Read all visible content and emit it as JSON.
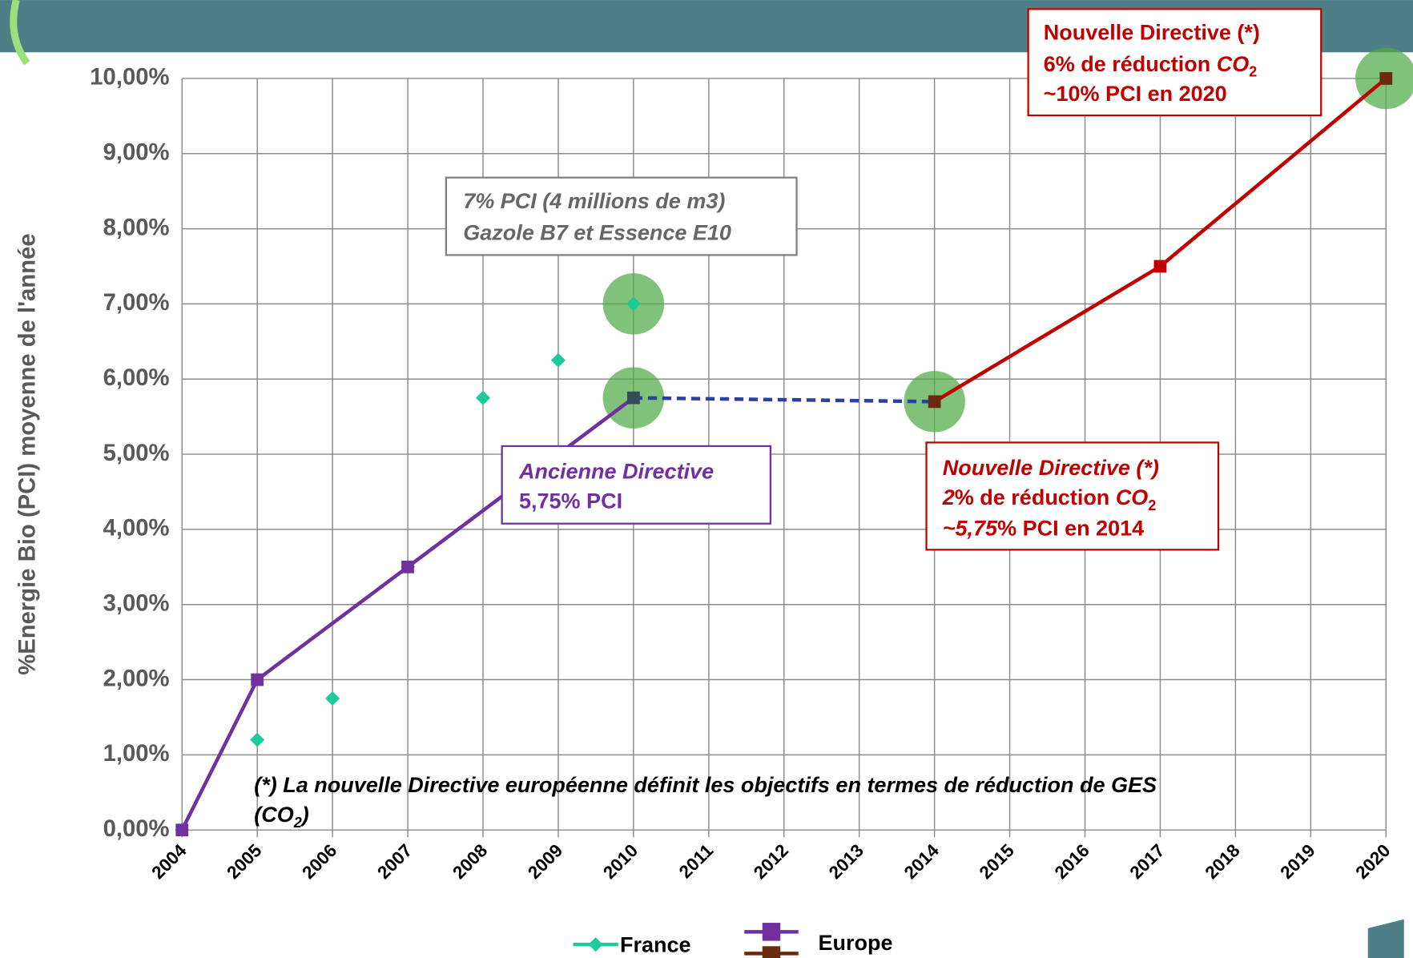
{
  "chart_data": {
    "type": "line",
    "y_label": "%Energie Bio (PCI) moyenne de l'année",
    "xlim": [
      2004,
      2020
    ],
    "xticks": [
      2004,
      2005,
      2006,
      2007,
      2008,
      2009,
      2010,
      2011,
      2012,
      2013,
      2014,
      2015,
      2016,
      2017,
      2018,
      2019,
      2020
    ],
    "ylim": [
      0,
      10
    ],
    "yticks": [
      {
        "value": 0,
        "label": "0,00%"
      },
      {
        "value": 1,
        "label": "1,00%"
      },
      {
        "value": 2,
        "label": "2,00%"
      },
      {
        "value": 3,
        "label": "3,00%"
      },
      {
        "value": 4,
        "label": "4,00%"
      },
      {
        "value": 5,
        "label": "5,00%"
      },
      {
        "value": 6,
        "label": "6,00%"
      },
      {
        "value": 7,
        "label": "7,00%"
      },
      {
        "value": 8,
        "label": "8,00%"
      },
      {
        "value": 9,
        "label": "9,00%"
      },
      {
        "value": 10,
        "label": "10,00%"
      }
    ],
    "grid": true,
    "series": [
      {
        "name": "France",
        "color": "#1fc99b",
        "marker": "diamond",
        "x": [
          2004,
          2005,
          2006,
          2007,
          2008,
          2009,
          2010
        ],
        "values": [
          0,
          1.2,
          1.75,
          3.5,
          5.75,
          6.25,
          7.0
        ]
      },
      {
        "name": "Europe",
        "color": "#7030a0",
        "marker": "square",
        "x": [
          2004,
          2005,
          2007,
          2010,
          2014,
          2017,
          2020
        ],
        "values": [
          0,
          2.0,
          3.5,
          5.75,
          5.7,
          7.5,
          10.0
        ],
        "segment_colors": [
          "#7030a0",
          "#7030a0",
          "#7030a0",
          "#2d3fa0",
          "#c00000",
          "#c00000"
        ],
        "segment_dashed": [
          false,
          false,
          false,
          true,
          false,
          false
        ],
        "marker_colors": [
          "#7030a0",
          "#7030a0",
          "#7030a0",
          "#344a5a",
          "#6b2a10",
          "#c00000",
          "#6b2a10"
        ]
      }
    ],
    "annotations": [
      {
        "lines": [
          [
            "Nouvelle Directive (*)"
          ],
          [
            "6% de réduction ",
            "CO",
            "2"
          ],
          [
            "~10% PCI en 2020"
          ]
        ]
      },
      {
        "lines": [
          [
            "7% PCI (4 millions de m3)"
          ],
          [
            "Gazole B7 et Essence E10"
          ]
        ]
      },
      {
        "lines": [
          [
            "Ancienne Directive"
          ],
          [
            "5,75% PCI"
          ]
        ]
      },
      {
        "lines": [
          [
            "Nouvelle Directive (*)"
          ],
          [
            "2",
            "% de réduction ",
            "CO",
            "2"
          ],
          [
            "~5,75",
            "% PCI en 2014"
          ]
        ]
      },
      {
        "lines": [
          [
            "(*) La nouvelle Directive européenne définit les objectifs en termes de réduction de GES"
          ],
          [
            "(CO",
            "2",
            ")"
          ]
        ]
      }
    ]
  }
}
